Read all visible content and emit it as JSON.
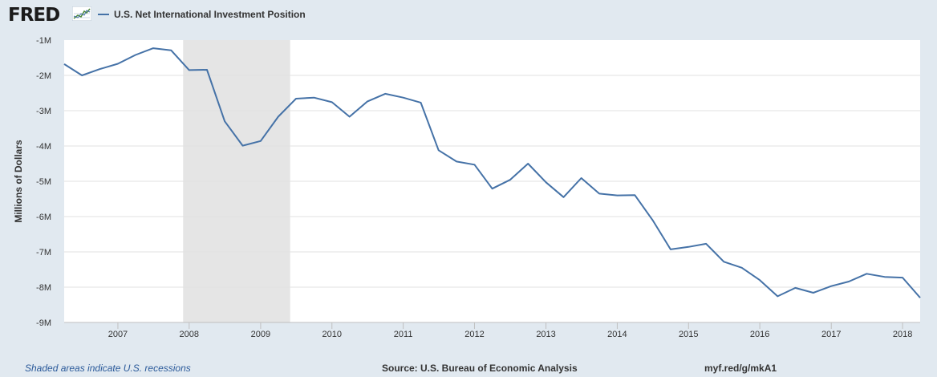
{
  "header": {
    "logo_text": "FRED",
    "logo_icon": "line-graph-icon",
    "legend_label": "U.S. Net International Investment Position",
    "series_color": "#4572a7"
  },
  "footer": {
    "recession_note": "Shaded areas indicate U.S. recessions",
    "source": "Source: U.S. Bureau of Economic Analysis",
    "url": "myf.red/g/mkA1"
  },
  "chart_data": {
    "type": "line",
    "title": "",
    "ylabel": "Millions of Dollars",
    "xlabel": "",
    "ylim": [
      -9000000,
      -1000000
    ],
    "y_ticks": [
      -1000000,
      -2000000,
      -3000000,
      -4000000,
      -5000000,
      -6000000,
      -7000000,
      -8000000,
      -9000000
    ],
    "y_tick_labels": [
      "-1M",
      "-2M",
      "-3M",
      "-4M",
      "-5M",
      "-6M",
      "-7M",
      "-8M",
      "-9M"
    ],
    "xlim": [
      "2006-04-01",
      "2018-04-01"
    ],
    "x_ticks": [
      "2007-01-01",
      "2008-01-01",
      "2009-01-01",
      "2010-01-01",
      "2011-01-01",
      "2012-01-01",
      "2013-01-01",
      "2014-01-01",
      "2015-01-01",
      "2016-01-01",
      "2017-01-01",
      "2018-01-01"
    ],
    "x_tick_labels": [
      "2007",
      "2008",
      "2009",
      "2010",
      "2011",
      "2012",
      "2013",
      "2014",
      "2015",
      "2016",
      "2017",
      "2018"
    ],
    "grid": true,
    "recessions": [
      {
        "start": "2007-12-01",
        "end": "2009-06-01",
        "color": "#e5e5e5"
      }
    ],
    "series": [
      {
        "color": "#4572a7",
        "x": [
          "2006-04-01",
          "2006-07-01",
          "2006-10-01",
          "2007-01-01",
          "2007-04-01",
          "2007-07-01",
          "2007-10-01",
          "2008-01-01",
          "2008-04-01",
          "2008-07-01",
          "2008-10-01",
          "2009-01-01",
          "2009-04-01",
          "2009-07-01",
          "2009-10-01",
          "2010-01-01",
          "2010-04-01",
          "2010-07-01",
          "2010-10-01",
          "2011-01-01",
          "2011-04-01",
          "2011-07-01",
          "2011-10-01",
          "2012-01-01",
          "2012-04-01",
          "2012-07-01",
          "2012-10-01",
          "2013-01-01",
          "2013-04-01",
          "2013-07-01",
          "2013-10-01",
          "2014-01-01",
          "2014-04-01",
          "2014-07-01",
          "2014-10-01",
          "2015-01-01",
          "2015-04-01",
          "2015-07-01",
          "2015-10-01",
          "2016-01-01",
          "2016-04-01",
          "2016-07-01",
          "2016-10-01",
          "2017-01-01",
          "2017-04-01",
          "2017-07-01",
          "2017-10-01",
          "2018-01-01",
          "2018-04-01"
        ],
        "values": [
          -1680000,
          -2000000,
          -1820000,
          -1670000,
          -1420000,
          -1230000,
          -1290000,
          -1850000,
          -1840000,
          -3300000,
          -3990000,
          -3860000,
          -3170000,
          -2660000,
          -2630000,
          -2760000,
          -3170000,
          -2740000,
          -2520000,
          -2630000,
          -2770000,
          -4120000,
          -4440000,
          -4530000,
          -5210000,
          -4960000,
          -4500000,
          -5030000,
          -5450000,
          -4910000,
          -5350000,
          -5400000,
          -5390000,
          -6100000,
          -6930000,
          -6860000,
          -6770000,
          -7280000,
          -7450000,
          -7800000,
          -8260000,
          -8020000,
          -8160000,
          -7970000,
          -7840000,
          -7620000,
          -7710000,
          -7730000,
          -8300000
        ]
      }
    ]
  }
}
